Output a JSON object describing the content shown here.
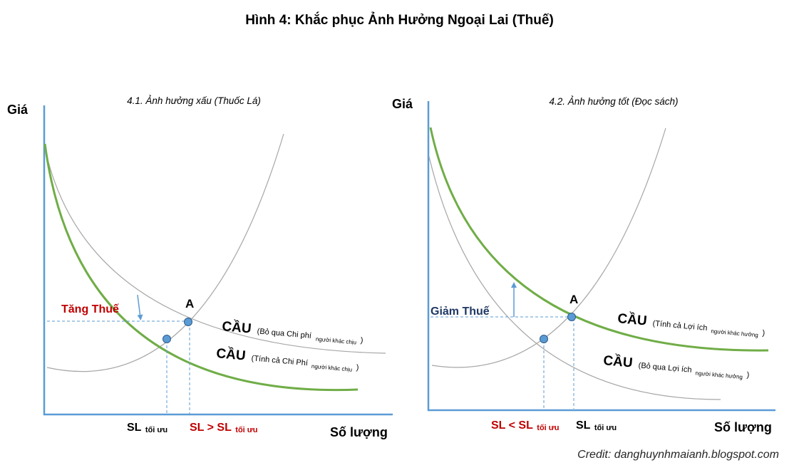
{
  "title": "Hình 4: Khắc phục Ảnh Hưởng Ngoại Lai (Thuế)",
  "colors": {
    "axis": "#5b9bd5",
    "green_curve": "#70ad47",
    "gray_curve": "#a6a6a6",
    "point": "#5b9bd5",
    "red_text": "#c00000",
    "navy_text": "#1f3864"
  },
  "panel1": {
    "subtitle": "4.1. Ảnh hưởng xấu (Thuốc Lá)",
    "y_axis": "Giá",
    "x_axis": "Số lượng",
    "point_label": "A",
    "tax_label": "Tăng Thuế",
    "demand1": {
      "main": "CẦU",
      "open": "(Bỏ qua Chi phí",
      "sub": "người khác chịu",
      "close": ")"
    },
    "demand2": {
      "main": "CẦU",
      "open": "(Tính cả Chi Phí",
      "sub": "người khác chịu",
      "close": ")"
    },
    "sl_opt": {
      "main": "SL",
      "sub": "tối ưu"
    },
    "sl_compare": {
      "main": "SL > SL",
      "sub": "tối ưu"
    }
  },
  "panel2": {
    "subtitle": "4.2. Ảnh hưởng tốt (Đọc sách)",
    "y_axis": "Giá",
    "x_axis": "Số lượng",
    "point_label": "A",
    "tax_label": "Giảm Thuế",
    "demand1": {
      "main": "CẦU",
      "open": "(Tính cả Lợi ích",
      "sub": "người khác hưởng",
      "close": ")"
    },
    "demand2": {
      "main": "CẦU",
      "open": "(Bỏ qua Lợi ích",
      "sub": "người khác hưởng",
      "close": ")"
    },
    "sl_compare": {
      "main": "SL < SL",
      "sub": "tối ưu"
    },
    "sl_opt": {
      "main": "SL",
      "sub": "tối ưu"
    }
  },
  "credit": "Credit: danghuynhmaianh.blogspot.com"
}
